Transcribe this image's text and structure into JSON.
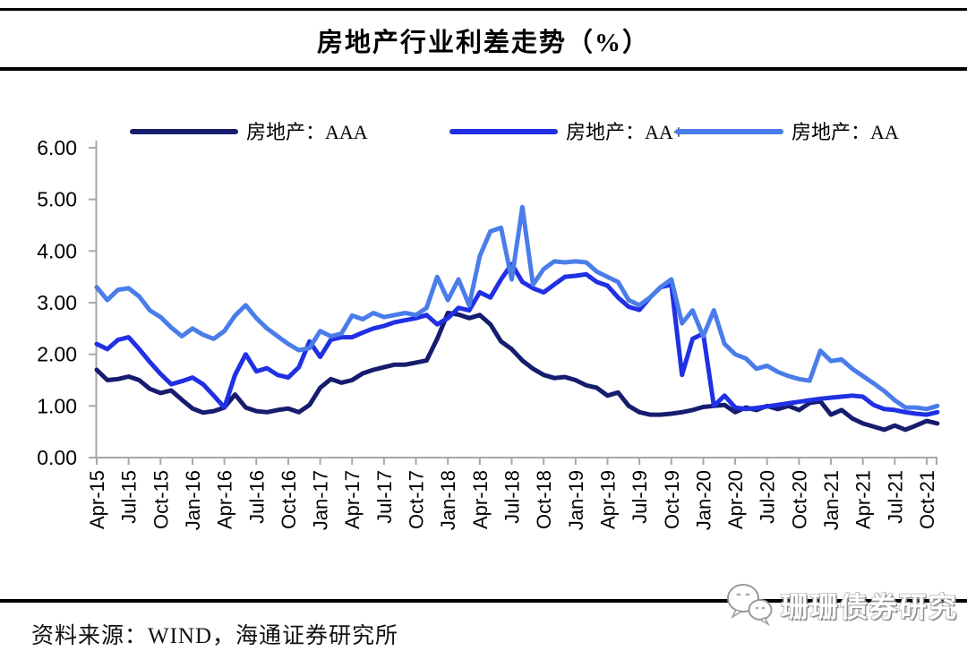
{
  "header": {
    "title": "房地产行业利差走势（%）"
  },
  "footer": {
    "source_label": "资料来源：WIND，海通证券研究所",
    "watermark_text": "珊珊债券研究"
  },
  "chart_data": {
    "type": "line",
    "title": "房地产行业利差走势（%）",
    "ylabel": "",
    "xlabel": "",
    "ylim": [
      0,
      6
    ],
    "grid": false,
    "legend_position": "top",
    "y_tick_labels": [
      "6.00",
      "5.00",
      "4.00",
      "3.00",
      "2.00",
      "1.00",
      "0.00"
    ],
    "x_tick_labels": [
      "Apr-15",
      "Jul-15",
      "Oct-15",
      "Jan-16",
      "Apr-16",
      "Jul-16",
      "Oct-16",
      "Jan-17",
      "Apr-17",
      "Jul-17",
      "Oct-17",
      "Jan-18",
      "Apr-18",
      "Jul-18",
      "Oct-18",
      "Jan-19",
      "Apr-19",
      "Jul-19",
      "Oct-19",
      "Jan-20",
      "Apr-20",
      "Jul-20",
      "Oct-20",
      "Jan-21",
      "Apr-21",
      "Jul-21",
      "Oct-21"
    ],
    "x_start": "Apr-15",
    "x_interval": "monthly",
    "n_points": 80,
    "axis_color": "#a8a8a8",
    "series": [
      {
        "name": "房地产：AAA",
        "color": "#161d6e",
        "values": [
          1.7,
          1.5,
          1.52,
          1.57,
          1.5,
          1.33,
          1.25,
          1.3,
          1.12,
          0.95,
          0.87,
          0.9,
          0.97,
          1.22,
          0.97,
          0.9,
          0.88,
          0.92,
          0.95,
          0.88,
          1.02,
          1.35,
          1.52,
          1.45,
          1.5,
          1.63,
          1.7,
          1.75,
          1.8,
          1.8,
          1.84,
          1.88,
          2.3,
          2.8,
          2.77,
          2.7,
          2.76,
          2.58,
          2.25,
          2.1,
          1.88,
          1.72,
          1.6,
          1.54,
          1.56,
          1.5,
          1.4,
          1.35,
          1.2,
          1.26,
          1.0,
          0.88,
          0.83,
          0.83,
          0.85,
          0.88,
          0.92,
          0.98,
          1.0,
          1.02,
          0.88,
          0.97,
          0.92,
          1.0,
          0.94,
          1.0,
          0.92,
          1.06,
          1.09,
          0.83,
          0.92,
          0.76,
          0.66,
          0.6,
          0.54,
          0.62,
          0.54,
          0.62,
          0.71,
          0.66
        ]
      },
      {
        "name": "房地产：AA+",
        "color": "#2030e4",
        "values": [
          2.2,
          2.1,
          2.28,
          2.33,
          2.1,
          1.85,
          1.62,
          1.42,
          1.48,
          1.55,
          1.42,
          1.2,
          0.97,
          1.6,
          2.0,
          1.67,
          1.73,
          1.6,
          1.55,
          1.75,
          2.25,
          1.95,
          2.28,
          2.33,
          2.33,
          2.42,
          2.5,
          2.55,
          2.62,
          2.66,
          2.7,
          2.76,
          2.58,
          2.7,
          2.9,
          2.85,
          3.2,
          3.1,
          3.45,
          3.75,
          3.4,
          3.28,
          3.2,
          3.35,
          3.5,
          3.52,
          3.55,
          3.4,
          3.33,
          3.1,
          2.92,
          2.86,
          3.1,
          3.3,
          3.35,
          1.6,
          2.3,
          2.4,
          1.0,
          1.2,
          0.97,
          0.94,
          0.96,
          0.99,
          1.02,
          1.05,
          1.08,
          1.11,
          1.14,
          1.16,
          1.18,
          1.2,
          1.18,
          1.02,
          0.94,
          0.92,
          0.88,
          0.85,
          0.83,
          0.88
        ]
      },
      {
        "name": "房地产：AA",
        "color": "#4a7de9",
        "values": [
          3.3,
          3.05,
          3.25,
          3.28,
          3.12,
          2.85,
          2.72,
          2.52,
          2.35,
          2.5,
          2.38,
          2.3,
          2.45,
          2.75,
          2.95,
          2.7,
          2.5,
          2.35,
          2.2,
          2.08,
          2.12,
          2.45,
          2.35,
          2.4,
          2.75,
          2.68,
          2.8,
          2.72,
          2.76,
          2.8,
          2.76,
          2.9,
          3.5,
          3.05,
          3.45,
          2.95,
          3.9,
          4.38,
          4.45,
          3.45,
          4.85,
          3.35,
          3.65,
          3.8,
          3.78,
          3.8,
          3.78,
          3.6,
          3.5,
          3.4,
          3.05,
          2.95,
          3.1,
          3.3,
          3.45,
          2.6,
          2.85,
          2.35,
          2.85,
          2.2,
          2.0,
          1.92,
          1.72,
          1.78,
          1.66,
          1.58,
          1.52,
          1.49,
          2.07,
          1.87,
          1.9,
          1.72,
          1.58,
          1.44,
          1.29,
          1.11,
          0.97,
          0.97,
          0.94,
          1.0
        ]
      }
    ]
  }
}
